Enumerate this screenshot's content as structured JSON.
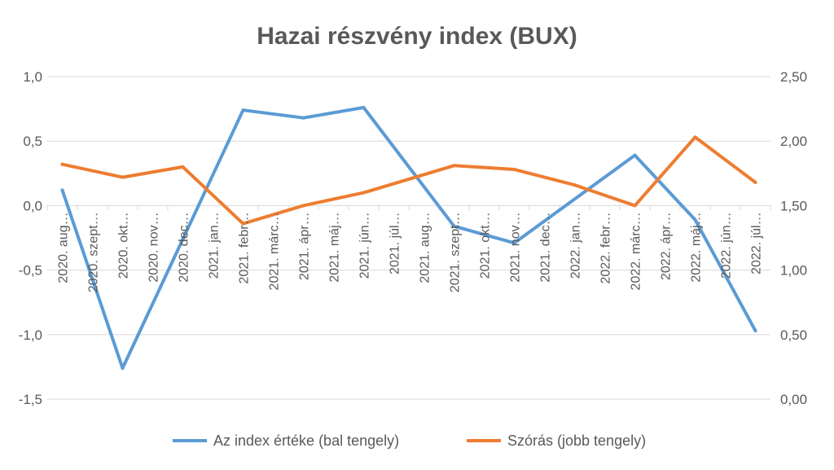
{
  "chart_data": {
    "type": "line",
    "title": "Hazai részvény index (BUX)",
    "categories": [
      "2020. aug.",
      "2020. szept.",
      "2020. okt.",
      "2020. nov.",
      "2020. dec.",
      "2021. jan.",
      "2021. febr.",
      "2021. márc.",
      "2021. ápr.",
      "2021. máj.",
      "2021. jún.",
      "2021. júl.",
      "2021. aug.",
      "2021. szept.",
      "2021. okt.",
      "2021. nov.",
      "2021. dec.",
      "2022. jan.",
      "2022. febr.",
      "2022. márc.",
      "2022. ápr.",
      "2022. máj.",
      "2022. jún.",
      "2022. júl."
    ],
    "category_labels": [
      "2020. aug…",
      "2020. szept…",
      "2020. okt…",
      "2020. nov…",
      "2020. dec…",
      "2021. jan…",
      "2021. febr…",
      "2021. márc…",
      "2021. ápr…",
      "2021. máj…",
      "2021. jún…",
      "2021. júl…",
      "2021. aug…",
      "2021. szept…",
      "2021. okt…",
      "2021. nov…",
      "2021. dec…",
      "2022. jan…",
      "2022. febr…",
      "2022. márc…",
      "2022. ápr…",
      "2022. máj…",
      "2022. jún…",
      "2022. júl…"
    ],
    "series": [
      {
        "name": "Az index értéke (bal tengely)",
        "axis": "left",
        "color": "#5B9BD5",
        "values": [
          0.12,
          null,
          -1.26,
          null,
          null,
          null,
          0.74,
          null,
          0.68,
          null,
          0.76,
          null,
          null,
          -0.16,
          null,
          -0.29,
          null,
          null,
          null,
          0.39,
          null,
          -0.11,
          null,
          -0.97
        ]
      },
      {
        "name": "Szórás (jobb tengely)",
        "axis": "right",
        "color": "#ED7D31",
        "values": [
          1.82,
          null,
          1.72,
          null,
          1.8,
          null,
          1.36,
          null,
          1.5,
          null,
          1.6,
          null,
          null,
          1.81,
          null,
          1.78,
          null,
          1.66,
          null,
          1.5,
          null,
          2.03,
          null,
          1.68
        ]
      }
    ],
    "y_left": {
      "ticks": [
        "1,0",
        "0,5",
        "0,0",
        "-0,5",
        "-1,0",
        "-1,5"
      ],
      "ylim": [
        -1.5,
        1.0
      ]
    },
    "y_right": {
      "ticks": [
        "2,50",
        "2,00",
        "1,50",
        "1,00",
        "0,50",
        "0,00"
      ],
      "ylim": [
        0.0,
        2.5
      ]
    },
    "grid": "horizontal",
    "legend_position": "bottom"
  }
}
